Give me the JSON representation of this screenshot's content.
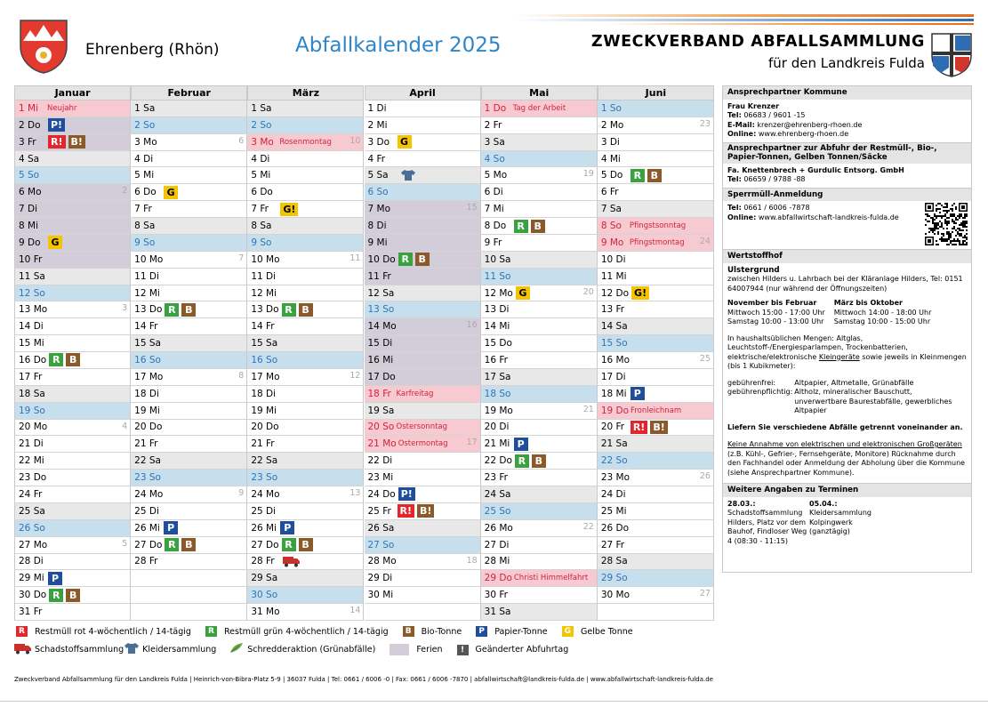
{
  "header": {
    "municipality": "Ehrenberg (Rhön)",
    "title": "Abfallkalender 2025",
    "org_line1": "ZWECKVERBAND ABFALLSAMMLUNG",
    "org_line2": "für den Landkreis Fulda"
  },
  "day_styles": {
    "sa": {
      "bg": "#e8e8e8",
      "fg": "#000"
    },
    "so": {
      "bg": "#c7dfec",
      "fg": "#2e75b6"
    },
    "ho": {
      "bg": "#f7c9d1",
      "fg": "#d2233c"
    },
    "fe": {
      "bg": "#d2cdd8",
      "fg": "#000"
    }
  },
  "badge_colors": {
    "R": [
      "#3aa13f",
      "#fff"
    ],
    "R!": [
      "#e3262d",
      "#fff"
    ],
    "B": [
      "#8b5a2b",
      "#fff"
    ],
    "B!": [
      "#8b5a2b",
      "#fff"
    ],
    "P": [
      "#1f4f9c",
      "#fff"
    ],
    "P!": [
      "#1f4f9c",
      "#fff"
    ],
    "G": [
      "#f5c400",
      "#000"
    ],
    "G!": [
      "#f5c400",
      "#000"
    ]
  },
  "months": [
    {
      "name": "Januar",
      "days": [
        {
          "d": "1 Mi",
          "n": "Neujahr",
          "t": "ho"
        },
        {
          "d": "2 Do",
          "b": [
            "P!"
          ],
          "t": "fe"
        },
        {
          "d": "3 Fr",
          "b": [
            "R!",
            "B!"
          ],
          "t": "fe"
        },
        {
          "d": "4 Sa",
          "t": "sa"
        },
        {
          "d": "5 So",
          "t": "so"
        },
        {
          "d": "6 Mo",
          "w": "2",
          "t": "fe"
        },
        {
          "d": "7 Di",
          "t": "fe"
        },
        {
          "d": "8 Mi",
          "t": "fe"
        },
        {
          "d": "9 Do",
          "b": [
            "G"
          ],
          "t": "fe"
        },
        {
          "d": "10 Fr",
          "t": "fe"
        },
        {
          "d": "11 Sa",
          "t": "sa"
        },
        {
          "d": "12 So",
          "t": "so"
        },
        {
          "d": "13 Mo",
          "w": "3"
        },
        {
          "d": "14 Di"
        },
        {
          "d": "15 Mi"
        },
        {
          "d": "16 Do",
          "b": [
            "R",
            "B"
          ]
        },
        {
          "d": "17 Fr"
        },
        {
          "d": "18 Sa",
          "t": "sa"
        },
        {
          "d": "19 So",
          "t": "so"
        },
        {
          "d": "20 Mo",
          "w": "4"
        },
        {
          "d": "21 Di"
        },
        {
          "d": "22 Mi"
        },
        {
          "d": "23 Do"
        },
        {
          "d": "24 Fr"
        },
        {
          "d": "25 Sa",
          "t": "sa"
        },
        {
          "d": "26 So",
          "t": "so"
        },
        {
          "d": "27 Mo",
          "w": "5"
        },
        {
          "d": "28 Di"
        },
        {
          "d": "29 Mi",
          "b": [
            "P"
          ]
        },
        {
          "d": "30 Do",
          "b": [
            "R",
            "B"
          ]
        },
        {
          "d": "31 Fr"
        }
      ]
    },
    {
      "name": "Februar",
      "days": [
        {
          "d": "1 Sa",
          "t": "sa"
        },
        {
          "d": "2 So",
          "t": "so"
        },
        {
          "d": "3 Mo",
          "w": "6"
        },
        {
          "d": "4 Di"
        },
        {
          "d": "5 Mi"
        },
        {
          "d": "6 Do",
          "b": [
            "G"
          ]
        },
        {
          "d": "7 Fr"
        },
        {
          "d": "8 Sa",
          "t": "sa"
        },
        {
          "d": "9 So",
          "t": "so"
        },
        {
          "d": "10 Mo",
          "w": "7"
        },
        {
          "d": "11 Di"
        },
        {
          "d": "12 Mi"
        },
        {
          "d": "13 Do",
          "b": [
            "R",
            "B"
          ]
        },
        {
          "d": "14 Fr"
        },
        {
          "d": "15 Sa",
          "t": "sa"
        },
        {
          "d": "16 So",
          "t": "so"
        },
        {
          "d": "17 Mo",
          "w": "8"
        },
        {
          "d": "18 Di"
        },
        {
          "d": "19 Mi"
        },
        {
          "d": "20 Do"
        },
        {
          "d": "21 Fr"
        },
        {
          "d": "22 Sa",
          "t": "sa"
        },
        {
          "d": "23 So",
          "t": "so"
        },
        {
          "d": "24 Mo",
          "w": "9"
        },
        {
          "d": "25 Di"
        },
        {
          "d": "26 Mi",
          "b": [
            "P"
          ]
        },
        {
          "d": "27 Do",
          "b": [
            "R",
            "B"
          ]
        },
        {
          "d": "28 Fr"
        }
      ]
    },
    {
      "name": "März",
      "days": [
        {
          "d": "1 Sa",
          "t": "sa"
        },
        {
          "d": "2 So",
          "t": "so"
        },
        {
          "d": "3 Mo",
          "n": "Rosenmontag",
          "w": "10",
          "t": "ho"
        },
        {
          "d": "4 Di"
        },
        {
          "d": "5 Mi"
        },
        {
          "d": "6 Do"
        },
        {
          "d": "7 Fr",
          "b": [
            "G!"
          ]
        },
        {
          "d": "8 Sa",
          "t": "sa"
        },
        {
          "d": "9 So",
          "t": "so"
        },
        {
          "d": "10 Mo",
          "w": "11"
        },
        {
          "d": "11 Di"
        },
        {
          "d": "12 Mi"
        },
        {
          "d": "13 Do",
          "b": [
            "R",
            "B"
          ]
        },
        {
          "d": "14 Fr"
        },
        {
          "d": "15 Sa",
          "t": "sa"
        },
        {
          "d": "16 So",
          "t": "so"
        },
        {
          "d": "17 Mo",
          "w": "12"
        },
        {
          "d": "18 Di"
        },
        {
          "d": "19 Mi"
        },
        {
          "d": "20 Do"
        },
        {
          "d": "21 Fr"
        },
        {
          "d": "22 Sa",
          "t": "sa"
        },
        {
          "d": "23 So",
          "t": "so"
        },
        {
          "d": "24 Mo",
          "w": "13"
        },
        {
          "d": "25 Di"
        },
        {
          "d": "26 Mi",
          "b": [
            "P"
          ]
        },
        {
          "d": "27 Do",
          "b": [
            "R",
            "B"
          ]
        },
        {
          "d": "28 Fr",
          "i": "truck"
        },
        {
          "d": "29 Sa",
          "t": "sa"
        },
        {
          "d": "30 So",
          "t": "so"
        },
        {
          "d": "31 Mo",
          "w": "14"
        }
      ]
    },
    {
      "name": "April",
      "days": [
        {
          "d": "1 Di"
        },
        {
          "d": "2 Mi"
        },
        {
          "d": "3 Do",
          "b": [
            "G"
          ]
        },
        {
          "d": "4 Fr"
        },
        {
          "d": "5 Sa",
          "i": "shirt",
          "t": "sa"
        },
        {
          "d": "6 So",
          "t": "so"
        },
        {
          "d": "7 Mo",
          "w": "15",
          "t": "fe"
        },
        {
          "d": "8 Di",
          "t": "fe"
        },
        {
          "d": "9 Mi",
          "t": "fe"
        },
        {
          "d": "10 Do",
          "b": [
            "R",
            "B"
          ],
          "t": "fe"
        },
        {
          "d": "11 Fr",
          "t": "fe"
        },
        {
          "d": "12 Sa",
          "t": "sa"
        },
        {
          "d": "13 So",
          "t": "so"
        },
        {
          "d": "14 Mo",
          "w": "16",
          "t": "fe"
        },
        {
          "d": "15 Di",
          "t": "fe"
        },
        {
          "d": "16 Mi",
          "t": "fe"
        },
        {
          "d": "17 Do",
          "t": "fe"
        },
        {
          "d": "18 Fr",
          "n": "Karfreitag",
          "t": "ho"
        },
        {
          "d": "19 Sa",
          "t": "sa"
        },
        {
          "d": "20 So",
          "n": "Ostersonntag",
          "t": "ho"
        },
        {
          "d": "21 Mo",
          "n": "Ostermontag",
          "w": "17",
          "t": "ho"
        },
        {
          "d": "22 Di"
        },
        {
          "d": "23 Mi"
        },
        {
          "d": "24 Do",
          "b": [
            "P!"
          ]
        },
        {
          "d": "25 Fr",
          "b": [
            "R!",
            "B!"
          ]
        },
        {
          "d": "26 Sa",
          "t": "sa"
        },
        {
          "d": "27 So",
          "t": "so"
        },
        {
          "d": "28 Mo",
          "w": "18"
        },
        {
          "d": "29 Di"
        },
        {
          "d": "30 Mi"
        }
      ]
    },
    {
      "name": "Mai",
      "days": [
        {
          "d": "1 Do",
          "n": "Tag der Arbeit",
          "t": "ho"
        },
        {
          "d": "2 Fr"
        },
        {
          "d": "3 Sa",
          "t": "sa"
        },
        {
          "d": "4 So",
          "t": "so"
        },
        {
          "d": "5 Mo",
          "w": "19"
        },
        {
          "d": "6 Di"
        },
        {
          "d": "7 Mi"
        },
        {
          "d": "8 Do",
          "b": [
            "R",
            "B"
          ]
        },
        {
          "d": "9 Fr"
        },
        {
          "d": "10 Sa",
          "t": "sa"
        },
        {
          "d": "11 So",
          "t": "so"
        },
        {
          "d": "12 Mo",
          "b": [
            "G"
          ],
          "w": "20"
        },
        {
          "d": "13 Di"
        },
        {
          "d": "14 Mi"
        },
        {
          "d": "15 Do"
        },
        {
          "d": "16 Fr"
        },
        {
          "d": "17 Sa",
          "t": "sa"
        },
        {
          "d": "18 So",
          "t": "so"
        },
        {
          "d": "19 Mo",
          "w": "21"
        },
        {
          "d": "20 Di"
        },
        {
          "d": "21 Mi",
          "b": [
            "P"
          ]
        },
        {
          "d": "22 Do",
          "b": [
            "R",
            "B"
          ]
        },
        {
          "d": "23 Fr"
        },
        {
          "d": "24 Sa",
          "t": "sa"
        },
        {
          "d": "25 So",
          "t": "so"
        },
        {
          "d": "26 Mo",
          "w": "22"
        },
        {
          "d": "27 Di"
        },
        {
          "d": "28 Mi"
        },
        {
          "d": "29 Do",
          "n": "Christi Himmelfahrt",
          "t": "ho"
        },
        {
          "d": "30 Fr"
        },
        {
          "d": "31 Sa",
          "t": "sa"
        }
      ]
    },
    {
      "name": "Juni",
      "days": [
        {
          "d": "1 So",
          "t": "so"
        },
        {
          "d": "2 Mo",
          "w": "23"
        },
        {
          "d": "3 Di"
        },
        {
          "d": "4 Mi"
        },
        {
          "d": "5 Do",
          "b": [
            "R",
            "B"
          ]
        },
        {
          "d": "6 Fr"
        },
        {
          "d": "7 Sa",
          "t": "sa"
        },
        {
          "d": "8 So",
          "n": "Pfingstsonntag",
          "t": "ho"
        },
        {
          "d": "9 Mo",
          "n": "Pfingstmontag",
          "w": "24",
          "t": "ho"
        },
        {
          "d": "10 Di"
        },
        {
          "d": "11 Mi"
        },
        {
          "d": "12 Do",
          "b": [
            "G!"
          ]
        },
        {
          "d": "13 Fr"
        },
        {
          "d": "14 Sa",
          "t": "sa"
        },
        {
          "d": "15 So",
          "t": "so"
        },
        {
          "d": "16 Mo",
          "w": "25"
        },
        {
          "d": "17 Di"
        },
        {
          "d": "18 Mi",
          "b": [
            "P"
          ]
        },
        {
          "d": "19 Do",
          "n": "Fronleichnam",
          "t": "ho"
        },
        {
          "d": "20 Fr",
          "b": [
            "R!",
            "B!"
          ]
        },
        {
          "d": "21 Sa",
          "t": "sa"
        },
        {
          "d": "22 So",
          "t": "so"
        },
        {
          "d": "23 Mo",
          "w": "26"
        },
        {
          "d": "24 Di"
        },
        {
          "d": "25 Mi"
        },
        {
          "d": "26 Do"
        },
        {
          "d": "27 Fr"
        },
        {
          "d": "28 Sa",
          "t": "sa"
        },
        {
          "d": "29 So",
          "t": "so"
        },
        {
          "d": "30 Mo",
          "w": "27"
        }
      ]
    }
  ],
  "legend": [
    {
      "badge": "R",
      "color": "#e3262d",
      "text": "Restmüll rot 4-wöchentlich / 14-tägig"
    },
    {
      "badge": "R",
      "color": "#3aa13f",
      "text": "Restmüll grün 4-wöchentlich / 14-tägig"
    },
    {
      "badge": "B",
      "color": "#8b5a2b",
      "text": "Bio-Tonne"
    },
    {
      "badge": "P",
      "color": "#1f4f9c",
      "text": "Papier-Tonne"
    },
    {
      "badge": "G",
      "color": "#f5c400",
      "text": "Gelbe Tonne"
    },
    {
      "icon": "truck",
      "text": "Schadstoffsammlung"
    },
    {
      "icon": "shirt",
      "text": "Kleidersammlung"
    },
    {
      "icon": "shred",
      "text": "Schredderaktion (Grünabfälle)"
    },
    {
      "swatch": "#d2cdd8",
      "text": "Ferien"
    },
    {
      "badge": "!",
      "color": "#555555",
      "text": "Geänderter Abfuhrtag"
    }
  ],
  "panel": {
    "contact": {
      "heading": "Ansprechpartner Kommune",
      "name": "Frau Krenzer",
      "rows": [
        [
          "Tel:",
          "06683 / 9601 -15"
        ],
        [
          "E-Mail:",
          "krenzer@ehrenberg-rhoen.de"
        ],
        [
          "Online:",
          "www.ehrenberg-rhoen.de"
        ]
      ],
      "sub": "Ansprechpartner zur Abfuhr der Restmüll-, Bio-, Papier-Tonnen, Gelben Tonnen/Säcke",
      "company": "Fa. Knettenbrech + Gurdulic Entsorg. GmbH",
      "company_tel": [
        "Tel:",
        "06659 / 9788 -88"
      ]
    },
    "bulky": {
      "heading": "Sperrmüll-Anmeldung",
      "rows": [
        [
          "Tel:",
          "0661 / 6006 -7878"
        ],
        [
          "Online:",
          "www.abfallwirtschaft-landkreis-fulda.de"
        ]
      ]
    },
    "yard": {
      "heading": "Wertstoffhof",
      "place": "Ulstergrund",
      "address": "zwischen Hilders u. Lahrbach bei der Kläranlage Hilders, Tel: 0151 64007944 (nur während der Öffnungszeiten)",
      "hours": [
        [
          "November bis Februar",
          "März bis Oktober"
        ],
        [
          "Mittwoch 15:00 - 17:00 Uhr",
          "Mittwoch 14:00 - 18:00 Uhr"
        ],
        [
          "Samstag 10:00 - 13:00 Uhr",
          "Samstag 10:00 - 15:00 Uhr"
        ]
      ],
      "amounts": [
        "In haushaltsüblichen Mengen: Altglas, Leuchtstoff-/Energiesparlampen, Trockenbatterien, elektrische/elektronische ",
        "Kleingeräte",
        " sowie jeweils in Kleinmengen (bis 1 Kubikmeter):"
      ],
      "fees": [
        [
          "gebührenfrei:",
          "Altpapier, Altmetalle, Grünabfälle"
        ],
        [
          "gebührenpflichtig:",
          "Altholz, mineralischer Bauschutt, unverwertbare Baurestabfälle, gewerbliches Altpapier"
        ]
      ],
      "separate": "Liefern Sie verschiedene Abfälle getrennt voneinander an.",
      "no_large": "Keine Annahme von elektrischen und elektronischen Großgeräten",
      "no_large_detail": "(z.B. Kühl-, Gefrier-, Fernsehgeräte, Monitore) Rücknahme durch den Fachhandel oder Anmeldung der Abholung über die Kommune (siehe Ansprechpartner Kommune)."
    },
    "dates": {
      "heading": "Weitere Angaben zu Terminen",
      "items": [
        {
          "date": "28.03.:",
          "text": "Schadstoffsammlung Hilders, Platz vor dem Bauhof, Findloser Weg 4 (08:30 - 11:15)"
        },
        {
          "date": "05.04.:",
          "text": "Kleidersammlung Kolpingwerk (ganztägig)"
        }
      ]
    }
  },
  "footer": "Zweckverband Abfallsammlung für den Landkreis Fulda | Heinrich-von-Bibra-Platz 5-9 | 36037 Fulda | Tel: 0661 / 6006 -0 | Fax: 0661 / 6006 -7870 | abfallwirtschaft@landkreis-fulda.de | www.abfallwirtschaft-landkreis-fulda.de"
}
